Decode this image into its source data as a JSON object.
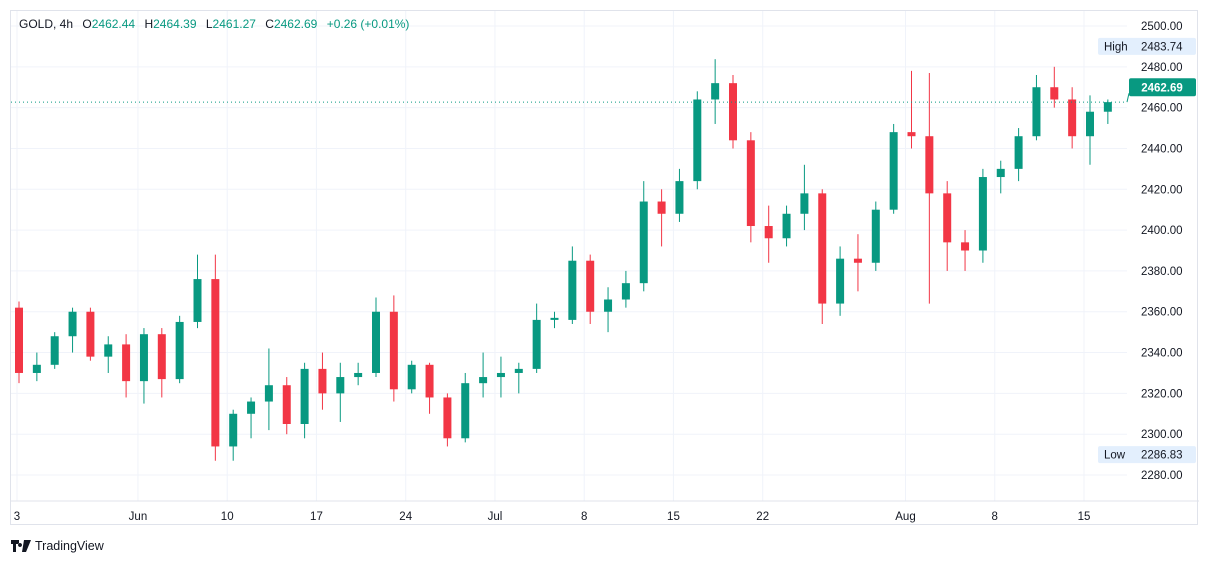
{
  "header": {
    "symbol": "GOLD, 4h",
    "o_label": "O",
    "open": "2462.44",
    "h_label": "H",
    "high": "2464.39",
    "l_label": "L",
    "low": "2461.27",
    "c_label": "C",
    "close": "2462.69",
    "change": "+0.26 (+0.01%)"
  },
  "price_axis": {
    "ticks": [
      "2500.00",
      "2480.00",
      "2460.00",
      "2440.00",
      "2420.00",
      "2400.00",
      "2380.00",
      "2360.00",
      "2340.00",
      "2320.00",
      "2300.00",
      "2280.00"
    ],
    "high_label": "High",
    "high_value": "2483.74",
    "low_label": "Low",
    "low_value": "2286.83",
    "last_price": "2462.69"
  },
  "time_axis": {
    "ticks": [
      {
        "label": "3",
        "day": 0
      },
      {
        "label": "Jun",
        "day": 7
      },
      {
        "label": "10",
        "day": 12
      },
      {
        "label": "17",
        "day": 17
      },
      {
        "label": "24",
        "day": 22
      },
      {
        "label": "Jul",
        "day": 27
      },
      {
        "label": "8",
        "day": 32
      },
      {
        "label": "15",
        "day": 37
      },
      {
        "label": "22",
        "day": 42
      },
      {
        "label": "Aug",
        "day": 50
      },
      {
        "label": "8",
        "day": 55
      },
      {
        "label": "15",
        "day": 60
      }
    ]
  },
  "brand": "TradingView",
  "colors": {
    "up": "#089981",
    "down": "#f23645",
    "grid": "#f0f3fa"
  },
  "chart_data": {
    "type": "candlestick",
    "title": "GOLD, 4h",
    "ylim": [
      2270,
      2507
    ],
    "last": 2462.69,
    "candles": [
      [
        2362,
        2365,
        2325,
        2330
      ],
      [
        2330,
        2340,
        2326,
        2334
      ],
      [
        2334,
        2350,
        2332,
        2348
      ],
      [
        2348,
        2362,
        2340,
        2360
      ],
      [
        2360,
        2362,
        2336,
        2338
      ],
      [
        2338,
        2348,
        2330,
        2344
      ],
      [
        2344,
        2349,
        2318,
        2326
      ],
      [
        2326,
        2352,
        2315,
        2349
      ],
      [
        2349,
        2352,
        2318,
        2327
      ],
      [
        2327,
        2358,
        2325,
        2355
      ],
      [
        2355,
        2388,
        2352,
        2376
      ],
      [
        2376,
        2388,
        2287,
        2294
      ],
      [
        2294,
        2312,
        2287,
        2310
      ],
      [
        2310,
        2318,
        2298,
        2316
      ],
      [
        2316,
        2342,
        2302,
        2324
      ],
      [
        2324,
        2328,
        2300,
        2305
      ],
      [
        2305,
        2335,
        2298,
        2332
      ],
      [
        2332,
        2340,
        2312,
        2320
      ],
      [
        2320,
        2335,
        2306,
        2328
      ],
      [
        2328,
        2335,
        2324,
        2330
      ],
      [
        2330,
        2367,
        2328,
        2360
      ],
      [
        2360,
        2368,
        2316,
        2322
      ],
      [
        2322,
        2336,
        2320,
        2334
      ],
      [
        2334,
        2335,
        2310,
        2318
      ],
      [
        2318,
        2320,
        2294,
        2298
      ],
      [
        2298,
        2330,
        2296,
        2325
      ],
      [
        2325,
        2340,
        2318,
        2328
      ],
      [
        2328,
        2338,
        2318,
        2330
      ],
      [
        2330,
        2335,
        2320,
        2332
      ],
      [
        2332,
        2364,
        2330,
        2356
      ],
      [
        2356,
        2360,
        2352,
        2357
      ],
      [
        2356,
        2392,
        2354,
        2385
      ],
      [
        2385,
        2388,
        2354,
        2360
      ],
      [
        2360,
        2372,
        2350,
        2366
      ],
      [
        2366,
        2380,
        2362,
        2374
      ],
      [
        2374,
        2424,
        2370,
        2414
      ],
      [
        2414,
        2420,
        2392,
        2408
      ],
      [
        2408,
        2430,
        2404,
        2424
      ],
      [
        2424,
        2468,
        2420,
        2464
      ],
      [
        2464,
        2483.74,
        2452,
        2472
      ],
      [
        2472,
        2476,
        2440,
        2444
      ],
      [
        2444,
        2448,
        2394,
        2402
      ],
      [
        2402,
        2412,
        2384,
        2396
      ],
      [
        2396,
        2412,
        2392,
        2408
      ],
      [
        2408,
        2432,
        2400,
        2418
      ],
      [
        2418,
        2420,
        2354,
        2364
      ],
      [
        2364,
        2392,
        2358,
        2386
      ],
      [
        2386,
        2398,
        2370,
        2384
      ],
      [
        2384,
        2414,
        2380,
        2410
      ],
      [
        2410,
        2452,
        2408,
        2448
      ],
      [
        2448,
        2478,
        2440,
        2446
      ],
      [
        2446,
        2477,
        2364,
        2418
      ],
      [
        2418,
        2424,
        2380,
        2394
      ],
      [
        2394,
        2400,
        2380,
        2390
      ],
      [
        2390,
        2430,
        2384,
        2426
      ],
      [
        2426,
        2434,
        2418,
        2430
      ],
      [
        2430,
        2450,
        2424,
        2446
      ],
      [
        2446,
        2476,
        2444,
        2470
      ],
      [
        2470,
        2480,
        2460,
        2464
      ],
      [
        2464,
        2470,
        2440,
        2446
      ],
      [
        2446,
        2466,
        2432,
        2458
      ],
      [
        2458,
        2464,
        2452,
        2462.69
      ]
    ]
  }
}
